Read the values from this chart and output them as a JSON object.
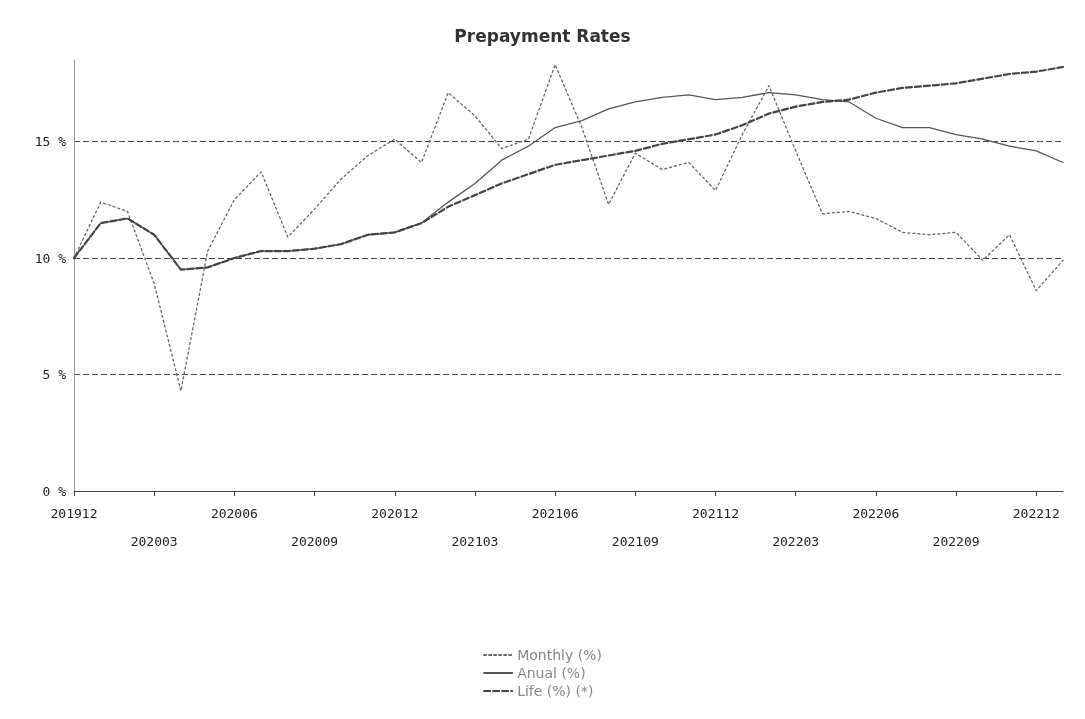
{
  "chart_data": {
    "type": "line",
    "title": "Prepayment Rates",
    "categories": [
      "201912",
      null,
      null,
      "202003",
      null,
      null,
      "202006",
      null,
      null,
      "202009",
      null,
      null,
      "202012",
      null,
      null,
      "202103",
      null,
      null,
      "202106",
      null,
      null,
      "202109",
      null,
      null,
      "202112",
      null,
      null,
      "202203",
      null,
      null,
      "202206",
      null,
      null,
      "202209",
      null,
      null,
      "202212",
      null
    ],
    "series": [
      {
        "name": "Monthly (%)",
        "color": "#666666",
        "line_style": "dotted",
        "values": [
          10.0,
          12.4,
          12.0,
          8.9,
          4.3,
          10.3,
          12.5,
          13.7,
          10.9,
          12.1,
          13.4,
          14.4,
          15.1,
          14.1,
          17.1,
          16.1,
          14.7,
          15.1,
          18.3,
          15.6,
          12.3,
          14.5,
          13.8,
          14.1,
          12.9,
          15.3,
          17.4,
          14.6,
          11.9,
          12.0,
          11.7,
          11.1,
          11.0,
          11.1,
          9.9,
          11.0,
          8.6,
          9.9
        ]
      },
      {
        "name": "Anual (%)",
        "color": "#555555",
        "line_style": "solid",
        "values": [
          10.0,
          11.5,
          11.7,
          11.0,
          9.5,
          9.6,
          10.0,
          10.3,
          10.3,
          10.4,
          10.6,
          11.0,
          11.1,
          11.5,
          12.4,
          13.2,
          14.2,
          14.8,
          15.6,
          15.9,
          16.4,
          16.7,
          16.9,
          17.0,
          16.8,
          16.9,
          17.1,
          17.0,
          16.8,
          16.7,
          16.0,
          15.6,
          15.6,
          15.3,
          15.1,
          14.8,
          14.6,
          14.1
        ]
      },
      {
        "name": "Life (%) (*)",
        "color": "#444444",
        "line_style": "dashed",
        "values": [
          10.0,
          11.5,
          11.7,
          11.0,
          9.5,
          9.6,
          10.0,
          10.3,
          10.3,
          10.4,
          10.6,
          11.0,
          11.1,
          11.5,
          12.2,
          12.7,
          13.2,
          13.6,
          14.0,
          14.2,
          14.4,
          14.6,
          14.9,
          15.1,
          15.3,
          15.7,
          16.2,
          16.5,
          16.7,
          16.8,
          17.1,
          17.3,
          17.4,
          17.5,
          17.7,
          17.9,
          18.0,
          18.2
        ]
      }
    ],
    "ylim": [
      0,
      18.5
    ],
    "yticks": [
      {
        "value": 0,
        "label": "0 %"
      },
      {
        "value": 5,
        "label": "5 %"
      },
      {
        "value": 10,
        "label": "10 %"
      },
      {
        "value": 15,
        "label": "15 %"
      }
    ],
    "grid": "y",
    "legend": "bottom",
    "marker": "none"
  }
}
